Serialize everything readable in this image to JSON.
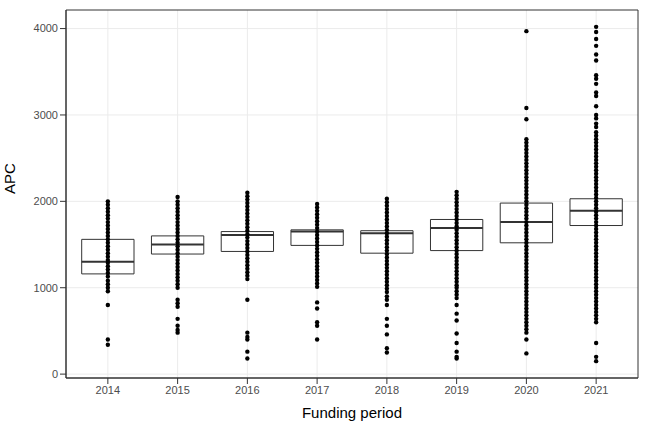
{
  "chart_data": {
    "type": "box",
    "x_label": "Funding period",
    "y_label": "APC",
    "categories": [
      "2014",
      "2015",
      "2016",
      "2017",
      "2018",
      "2019",
      "2020",
      "2021"
    ],
    "q1": [
      1160,
      1390,
      1420,
      1490,
      1400,
      1430,
      1520,
      1720
    ],
    "median": [
      1300,
      1500,
      1610,
      1650,
      1630,
      1690,
      1760,
      1890
    ],
    "q3": [
      1560,
      1600,
      1650,
      1670,
      1660,
      1790,
      1980,
      2030
    ],
    "points": [
      [
        2000,
        1960,
        1920,
        1880,
        1840,
        1800,
        1760,
        1720,
        1680,
        1640,
        1600,
        1560,
        1520,
        1480,
        1440,
        1400,
        1360,
        1320,
        1290,
        1250,
        1210,
        1170,
        1130,
        1080,
        1040,
        1000,
        960,
        800,
        400,
        340
      ],
      [
        2050,
        2000,
        1960,
        1920,
        1880,
        1840,
        1800,
        1760,
        1720,
        1680,
        1640,
        1600,
        1560,
        1520,
        1480,
        1440,
        1400,
        1360,
        1320,
        1280,
        1240,
        1200,
        1160,
        1120,
        1080,
        1040,
        1000,
        860,
        820,
        780,
        640,
        560,
        510,
        480
      ],
      [
        2100,
        2060,
        2020,
        1980,
        1940,
        1900,
        1860,
        1820,
        1780,
        1740,
        1700,
        1660,
        1620,
        1580,
        1540,
        1500,
        1460,
        1420,
        1380,
        1340,
        1300,
        1260,
        1220,
        1180,
        1140,
        1100,
        860,
        480,
        430,
        400,
        260,
        180
      ],
      [
        1970,
        1930,
        1890,
        1850,
        1810,
        1770,
        1730,
        1690,
        1650,
        1610,
        1570,
        1530,
        1490,
        1450,
        1410,
        1370,
        1330,
        1290,
        1250,
        1210,
        1170,
        1130,
        1090,
        1050,
        1010,
        830,
        760,
        600,
        560,
        400
      ],
      [
        2030,
        1990,
        1950,
        1910,
        1870,
        1830,
        1790,
        1750,
        1710,
        1670,
        1630,
        1590,
        1550,
        1510,
        1470,
        1430,
        1390,
        1350,
        1310,
        1270,
        1230,
        1190,
        1150,
        1110,
        1070,
        1030,
        990,
        950,
        900,
        860,
        800,
        640,
        560,
        460,
        300,
        250
      ],
      [
        2110,
        2070,
        2030,
        1990,
        1950,
        1910,
        1870,
        1830,
        1790,
        1750,
        1710,
        1670,
        1630,
        1590,
        1550,
        1510,
        1470,
        1430,
        1390,
        1350,
        1310,
        1270,
        1230,
        1190,
        1150,
        1110,
        1070,
        1030,
        1000,
        960,
        920,
        880,
        800,
        700,
        620,
        470,
        360,
        260,
        200,
        180
      ],
      [
        3970,
        3080,
        2950,
        2720,
        2680,
        2640,
        2600,
        2560,
        2520,
        2480,
        2440,
        2400,
        2360,
        2320,
        2280,
        2240,
        2200,
        2160,
        2120,
        2080,
        2040,
        2000,
        1960,
        1920,
        1880,
        1840,
        1800,
        1760,
        1720,
        1680,
        1640,
        1600,
        1560,
        1520,
        1480,
        1440,
        1400,
        1360,
        1320,
        1280,
        1240,
        1200,
        1160,
        1120,
        1080,
        1040,
        1000,
        960,
        920,
        880,
        840,
        800,
        760,
        720,
        680,
        640,
        600,
        560,
        520,
        480,
        400,
        240
      ],
      [
        4020,
        3960,
        3880,
        3800,
        3700,
        3630,
        3460,
        3420,
        3360,
        3260,
        3220,
        3100,
        3000,
        2960,
        2900,
        2860,
        2800,
        2760,
        2720,
        2680,
        2640,
        2600,
        2560,
        2520,
        2480,
        2440,
        2400,
        2360,
        2320,
        2280,
        2240,
        2200,
        2160,
        2120,
        2080,
        2040,
        2000,
        1960,
        1920,
        1880,
        1840,
        1800,
        1760,
        1720,
        1680,
        1640,
        1600,
        1560,
        1520,
        1480,
        1440,
        1400,
        1360,
        1320,
        1280,
        1240,
        1200,
        1160,
        1120,
        1080,
        1040,
        1000,
        960,
        920,
        880,
        840,
        800,
        760,
        720,
        680,
        640,
        600,
        360,
        200,
        150
      ]
    ],
    "color": "#000000",
    "ylim": [
      -45,
      4215
    ],
    "yticks": [
      0,
      1000,
      2000,
      3000,
      4000
    ],
    "grid": true
  }
}
